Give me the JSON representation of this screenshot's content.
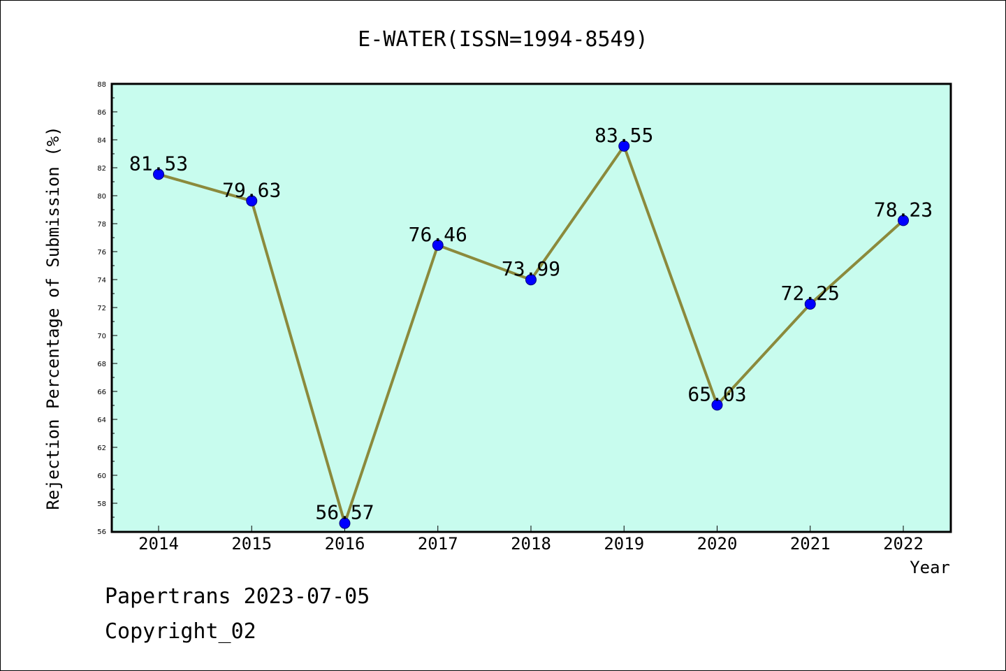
{
  "chart_data": {
    "type": "line",
    "title": "E-WATER(ISSN=1994-8549)",
    "xlabel": "Year",
    "ylabel": "Rejection Percentage of Submission (%)",
    "categories": [
      "2014",
      "2015",
      "2016",
      "2017",
      "2018",
      "2019",
      "2020",
      "2021",
      "2022"
    ],
    "series": [
      {
        "values": [
          81.53,
          79.63,
          56.57,
          76.46,
          73.99,
          83.55,
          65.03,
          72.25,
          78.23
        ]
      }
    ],
    "data_labels": [
      "81.53",
      "79.63",
      "56.57",
      "76.46",
      "73.99",
      "83.55",
      "65.03",
      "72.25",
      "78.23"
    ],
    "ylim": [
      56,
      88
    ],
    "y_ticks": [
      "56",
      "58",
      "60",
      "62",
      "64",
      "66",
      "68",
      "70",
      "72",
      "74",
      "76",
      "78",
      "80",
      "82",
      "84",
      "86",
      "88"
    ],
    "grid": false,
    "colors": {
      "plot_background": "#c8fcee",
      "line": "#8b8a3c",
      "marker": "#0000ff",
      "axis": "#000000"
    }
  },
  "footer": {
    "line1": "Papertrans 2023-07-05",
    "line2": "Copyright_02"
  }
}
